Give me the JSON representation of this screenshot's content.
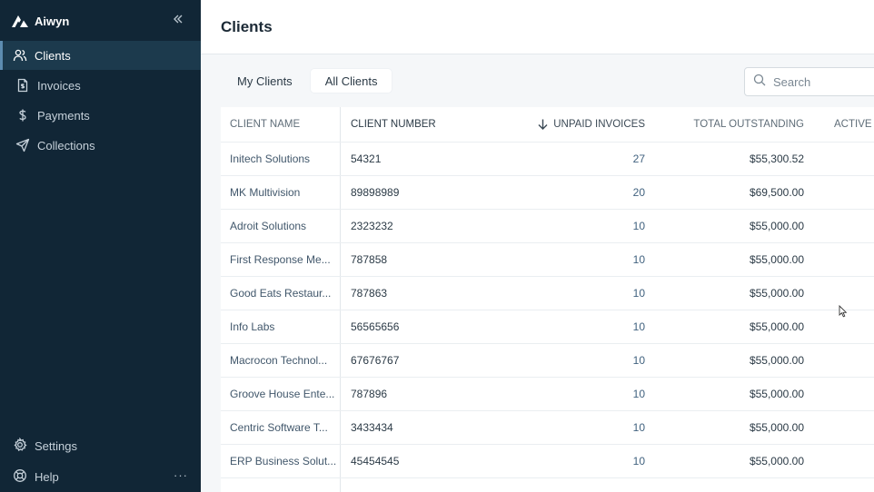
{
  "app": {
    "name": "Aiwyn"
  },
  "sidebar": {
    "collapse_icon": "double-chevron-left-icon",
    "items": [
      {
        "label": "Clients",
        "icon": "users-icon",
        "active": true
      },
      {
        "label": "Invoices",
        "icon": "invoice-icon",
        "active": false
      },
      {
        "label": "Payments",
        "icon": "dollar-icon",
        "active": false
      },
      {
        "label": "Collections",
        "icon": "send-icon",
        "active": false
      }
    ],
    "bottom": [
      {
        "label": "Settings",
        "icon": "gear-icon"
      },
      {
        "label": "Help",
        "icon": "lifebuoy-icon"
      }
    ],
    "more_label": "···"
  },
  "page": {
    "title": "Clients"
  },
  "tabs": [
    {
      "label": "My Clients",
      "selected": false
    },
    {
      "label": "All Clients",
      "selected": true
    }
  ],
  "search": {
    "placeholder": "Search",
    "value": ""
  },
  "table": {
    "columns": {
      "name": "CLIENT NAME",
      "number": "CLIENT NUMBER",
      "unpaid": "UNPAID INVOICES",
      "total": "TOTAL OUTSTANDING",
      "active": "ACTIVE"
    },
    "sort": {
      "column": "unpaid",
      "direction": "desc",
      "icon": "arrow-down-icon"
    },
    "rows": [
      {
        "name": "Initech Solutions",
        "number": "54321",
        "unpaid": "27",
        "total": "$55,300.52"
      },
      {
        "name": "MK Multivision",
        "number": "89898989",
        "unpaid": "20",
        "total": "$69,500.00"
      },
      {
        "name": "Adroit Solutions",
        "number": "2323232",
        "unpaid": "10",
        "total": "$55,000.00"
      },
      {
        "name": "First Response Me...",
        "number": "787858",
        "unpaid": "10",
        "total": "$55,000.00"
      },
      {
        "name": "Good Eats Restaur...",
        "number": "787863",
        "unpaid": "10",
        "total": "$55,000.00"
      },
      {
        "name": "Info Labs",
        "number": "56565656",
        "unpaid": "10",
        "total": "$55,000.00"
      },
      {
        "name": "Macrocon Technol...",
        "number": "67676767",
        "unpaid": "10",
        "total": "$55,000.00"
      },
      {
        "name": "Groove House Ente...",
        "number": "787896",
        "unpaid": "10",
        "total": "$55,000.00"
      },
      {
        "name": "Centric Software T...",
        "number": "3433434",
        "unpaid": "10",
        "total": "$55,000.00"
      },
      {
        "name": "ERP Business Solut...",
        "number": "45454545",
        "unpaid": "10",
        "total": "$55,000.00"
      }
    ]
  },
  "colors": {
    "sidebar_bg": "#112636",
    "sidebar_active_bg": "#1c3a4d",
    "content_bg": "#f5f7f9",
    "link_text": "#41576b"
  }
}
